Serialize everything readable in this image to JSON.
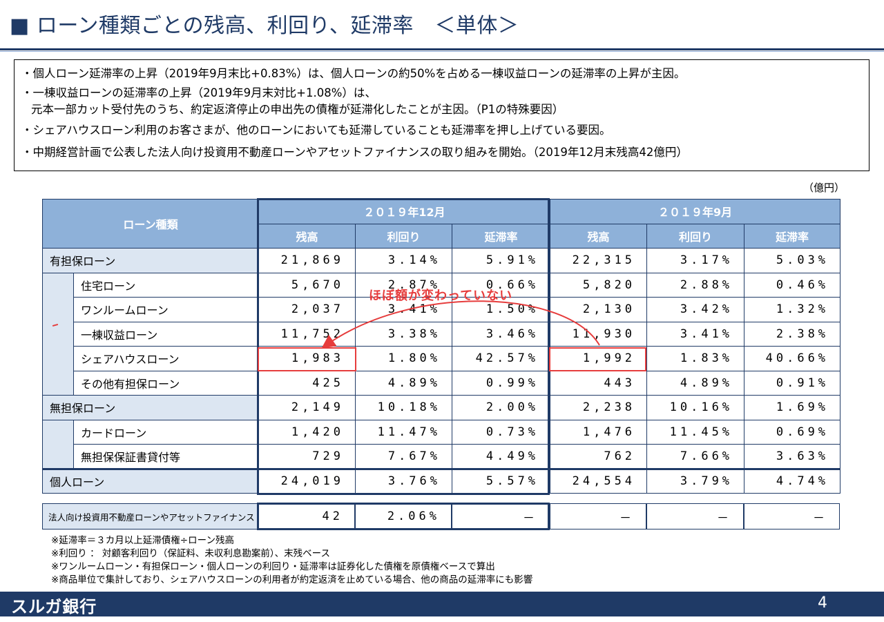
{
  "title": "■ ローン種類ごとの残高、利回り、延滞率　＜単体＞",
  "notes": [
    "・個人ローン延滞率の上昇（2019年9月末比+0.83%）は、個人ローンの約50%を占める一棟収益ローンの延滞率の上昇が主因。",
    "・一棟収益ローンの延滞率の上昇（2019年9月末対比+1.08%）は、",
    "元本一部カット受付先のうち、約定返済停止の申出先の債権が延滞化したことが主因。（P1の特殊要因）",
    "・シェアハウスローン利用のお客さまが、他のローンにおいても延滞していることも延滞率を押し上げている要因。",
    "・中期経営計画で公表した法人向け投資用不動産ローンやアセットファイナンスの取り組みを開始。（2019年12月末残高42億円）"
  ],
  "unit": "（億円）",
  "table": {
    "header_type": "ローン種類",
    "period1": "２０１９年12月",
    "period2": "２０１９年9月",
    "col_balance": "残高",
    "col_yield": "利回り",
    "col_delinquency": "延滞率",
    "rows": [
      {
        "label": "有担保ローン",
        "b1": "21,869",
        "y1": "3.14%",
        "d1": "5.91%",
        "b2": "22,315",
        "y2": "3.17%",
        "d2": "5.03%"
      },
      {
        "label": "住宅ローン",
        "b1": "5,670",
        "y1": "2.87%",
        "d1": "0.66%",
        "b2": "5,820",
        "y2": "2.88%",
        "d2": "0.46%"
      },
      {
        "label": "ワンルームローン",
        "b1": "2,037",
        "y1": "3.41%",
        "d1": "1.50%",
        "b2": "2,130",
        "y2": "3.42%",
        "d2": "1.32%"
      },
      {
        "label": "一棟収益ローン",
        "b1": "11,752",
        "y1": "3.38%",
        "d1": "3.46%",
        "b2": "11,930",
        "y2": "3.41%",
        "d2": "2.38%"
      },
      {
        "label": "シェアハウスローン",
        "b1": "1,983",
        "y1": "1.80%",
        "d1": "42.57%",
        "b2": "1,992",
        "y2": "1.83%",
        "d2": "40.66%"
      },
      {
        "label": "その他有担保ローン",
        "b1": "425",
        "y1": "4.89%",
        "d1": "0.99%",
        "b2": "443",
        "y2": "4.89%",
        "d2": "0.91%"
      },
      {
        "label": "無担保ローン",
        "b1": "2,149",
        "y1": "10.18%",
        "d1": "2.00%",
        "b2": "2,238",
        "y2": "10.16%",
        "d2": "1.69%"
      },
      {
        "label": "カードローン",
        "b1": "1,420",
        "y1": "11.47%",
        "d1": "0.73%",
        "b2": "1,476",
        "y2": "11.45%",
        "d2": "0.69%"
      },
      {
        "label": "無担保保証書貸付等",
        "b1": "729",
        "y1": "7.67%",
        "d1": "4.49%",
        "b2": "762",
        "y2": "7.66%",
        "d2": "3.63%"
      },
      {
        "label": "個人ローン",
        "b1": "24,019",
        "y1": "3.76%",
        "d1": "5.57%",
        "b2": "24,554",
        "y2": "3.79%",
        "d2": "4.74%"
      }
    ],
    "corporate": {
      "label": "法人向け投資用不動産ローンやアセットファイナンス",
      "b1": "42",
      "y1": "2.06%",
      "d1": "－",
      "b2": "－",
      "y2": "－",
      "d2": "－"
    }
  },
  "annotation": "ほぼ額が変わっていない",
  "footnotes": [
    "※延滞率＝３カ月以上延滞債権÷ローン残高",
    "※利回り ： 対顧客利回り（保証料、未収利息勘案前）、末残ベース",
    "※ワンルームローン・有担保ローン・個人ローンの利回り・延滞率は証券化した債権を原債権ベースで算出",
    "※商品単位で集計しており、シェアハウスローンの利用者が約定返済を止めている場合、他の商品の延滞率にも影響"
  ],
  "footer": {
    "logo": "スルガ銀行",
    "page": "4"
  }
}
